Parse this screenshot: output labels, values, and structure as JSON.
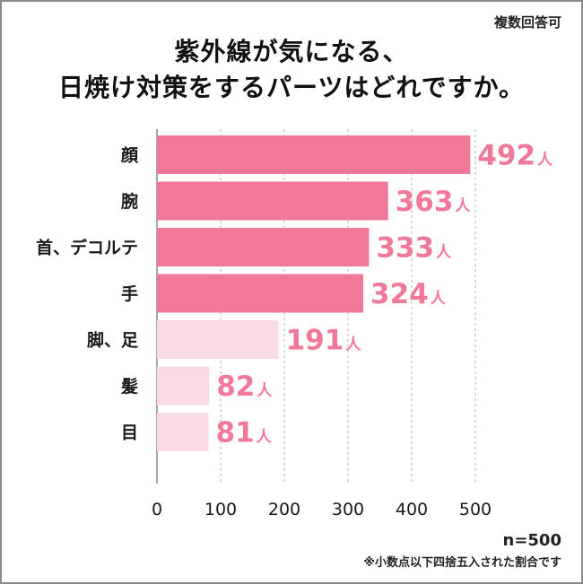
{
  "header": {
    "note": "複数回答可",
    "title_line1": "紫外線が気になる、",
    "title_line2": "日焼け対策をするパーツはどれですか。"
  },
  "chart_data": {
    "type": "bar",
    "orientation": "horizontal",
    "categories": [
      "顔",
      "腕",
      "首、デコルテ",
      "手",
      "脚、足",
      "髪",
      "目"
    ],
    "values": [
      492,
      363,
      333,
      324,
      191,
      82,
      81
    ],
    "value_suffix": "人",
    "xlim": [
      0,
      500
    ],
    "xticks": [
      0,
      100,
      200,
      300,
      400,
      500
    ],
    "grid": true,
    "colors": {
      "highlight_bar": "#f0799a",
      "muted_bar": "#fadbe3",
      "label": "#f0799a",
      "text": "#1a1a1a"
    },
    "highlight_count": 4
  },
  "footer": {
    "sample": "n=500",
    "note": "※小数点以下四捨五入された割合です"
  }
}
